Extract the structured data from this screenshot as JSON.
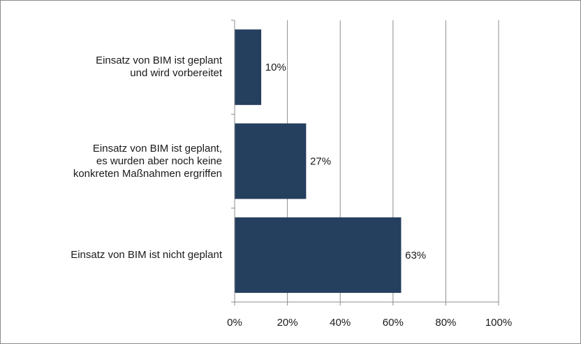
{
  "chart_data": {
    "type": "bar",
    "orientation": "horizontal",
    "categories": [
      [
        "Einsatz von BIM ist geplant",
        "und wird vorbereitet"
      ],
      [
        "Einsatz von BIM ist geplant,",
        "es wurden aber noch keine",
        "konkreten Maßnahmen ergriffen"
      ],
      [
        "Einsatz von BIM ist nicht geplant"
      ]
    ],
    "values": [
      10,
      27,
      63
    ],
    "value_labels": [
      "10%",
      "27%",
      "63%"
    ],
    "xlim": [
      0,
      100
    ],
    "xticks": [
      0,
      20,
      40,
      60,
      80,
      100
    ],
    "xtick_labels": [
      "0%",
      "20%",
      "40%",
      "60%",
      "80%",
      "100%"
    ],
    "grid": "vertical",
    "colors": {
      "bar": "#253f5f",
      "grid": "#8c8c8c",
      "axis": "#8c8c8c"
    }
  }
}
